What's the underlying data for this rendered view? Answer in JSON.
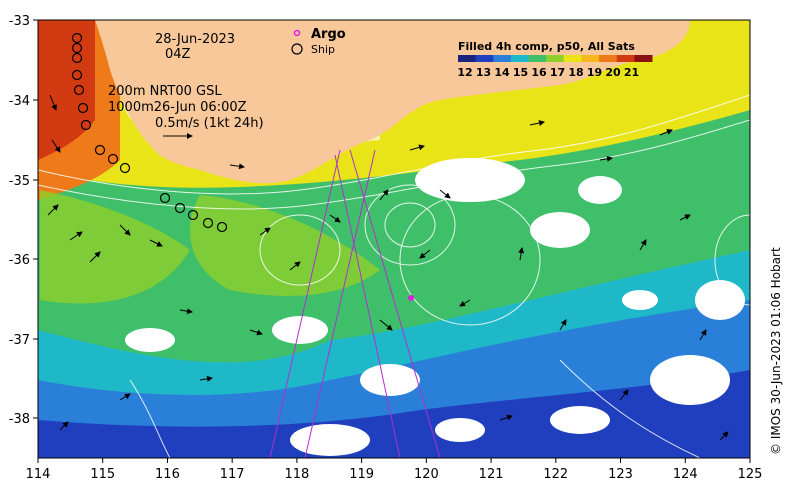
{
  "map": {
    "date": "28-Jun-2023",
    "time": "04Z",
    "depth_line1": "200m  NRT00 GSL",
    "depth_line2": "1000m26-Jun 06:00Z",
    "scale_label": "0.5m/s (1kt 24h)",
    "credit": "© IMOS 30-Jun-2023 01:06 Hobart"
  },
  "legend": {
    "argo_label": "Argo",
    "ship_label": "Ship"
  },
  "colorbar": {
    "title": "Filled 4h comp, p50, All Sats",
    "ticks": [
      "12",
      "13",
      "14",
      "15",
      "16",
      "17",
      "18",
      "19",
      "20",
      "21"
    ],
    "colors": [
      "#1a237e",
      "#1f3fbf",
      "#2a7fd8",
      "#1fb8c8",
      "#3fbf6a",
      "#8fcf2a",
      "#e8e418",
      "#f4b81c",
      "#ee7a1a",
      "#d23a12",
      "#8a1010"
    ]
  },
  "axes": {
    "x_ticks": [
      "114",
      "115",
      "116",
      "117",
      "118",
      "119",
      "120",
      "121",
      "122",
      "123",
      "124",
      "125"
    ],
    "y_ticks": [
      "-33",
      "-34",
      "-35",
      "-36",
      "-37",
      "-38"
    ]
  },
  "colors": {
    "land": "#f8c89a",
    "argo": "#e020e0",
    "tracks": "#b030d0"
  }
}
